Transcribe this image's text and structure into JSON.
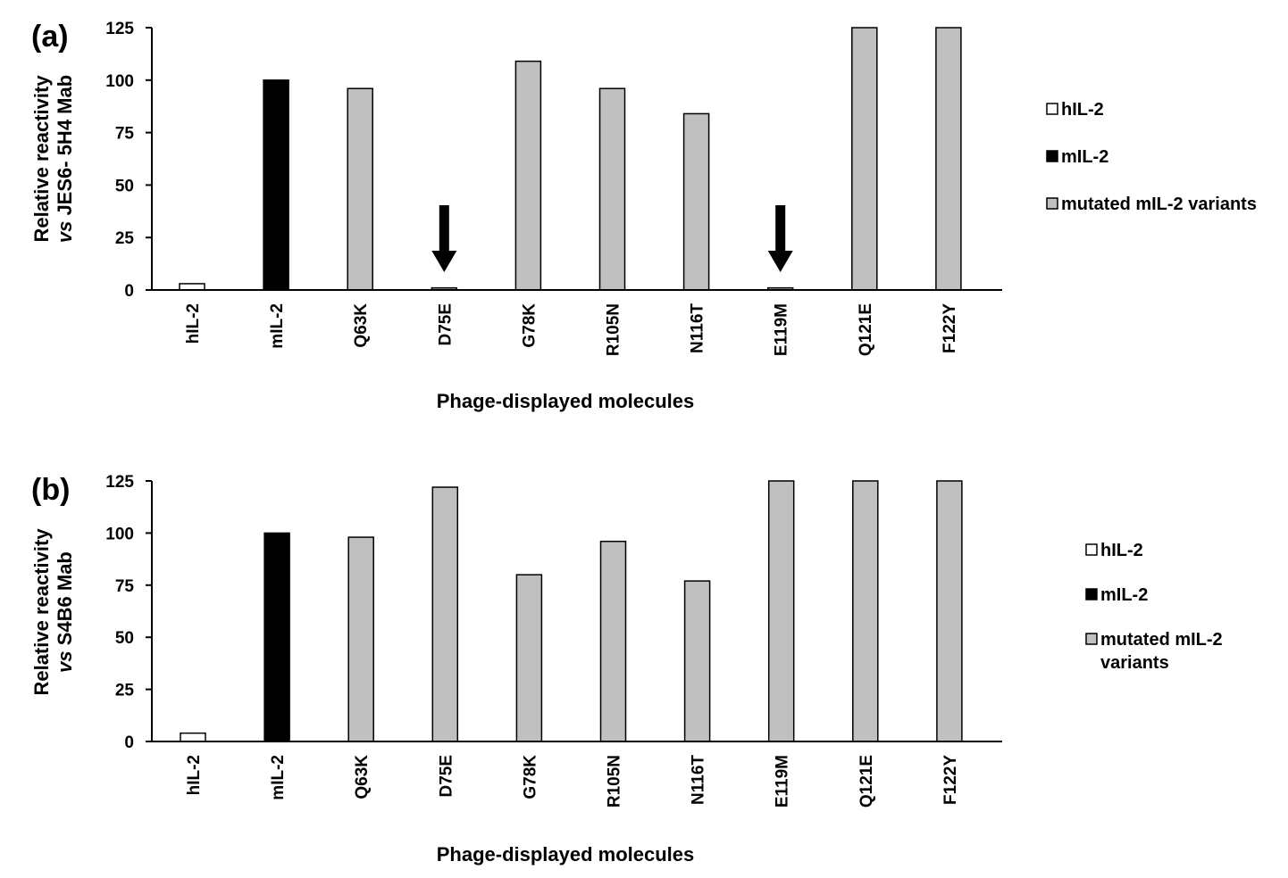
{
  "chart_data": [
    {
      "type": "bar",
      "panel_label": "(a)",
      "categories": [
        "hIL-2",
        "mIL-2",
        "Q63K",
        "D75E",
        "G78K",
        "R105N",
        "N116T",
        "E119M",
        "Q121E",
        "F122Y"
      ],
      "values": [
        3,
        100,
        96,
        1,
        109,
        96,
        84,
        1,
        125,
        125
      ],
      "bar_colors": [
        "#ffffff",
        "#000000",
        "#c0c0c0",
        "#c0c0c0",
        "#c0c0c0",
        "#c0c0c0",
        "#c0c0c0",
        "#c0c0c0",
        "#c0c0c0",
        "#c0c0c0"
      ],
      "ylabel_line1": "Relative reactivity",
      "ylabel_line2_italic": "vs",
      "ylabel_line2_rest": " JES6- 5H4  Mab",
      "xlabel": "Phage-displayed molecules",
      "ylim": [
        0,
        125
      ],
      "yticks": [
        "0",
        "25",
        "50",
        "75",
        "100",
        "125"
      ],
      "arrows_at": [
        "D75E",
        "E119M"
      ],
      "legend_position": "right",
      "legend": [
        {
          "label": "hIL-2",
          "color": "#ffffff"
        },
        {
          "label": "mIL-2",
          "color": "#000000"
        },
        {
          "label": "mutated mIL-2 variants",
          "color": "#c0c0c0"
        }
      ]
    },
    {
      "type": "bar",
      "panel_label": "(b)",
      "categories": [
        "hIL-2",
        "mIL-2",
        "Q63K",
        "D75E",
        "G78K",
        "R105N",
        "N116T",
        "E119M",
        "Q121E",
        "F122Y"
      ],
      "values": [
        4,
        100,
        98,
        122,
        80,
        96,
        77,
        125,
        125,
        125
      ],
      "bar_colors": [
        "#ffffff",
        "#000000",
        "#c0c0c0",
        "#c0c0c0",
        "#c0c0c0",
        "#c0c0c0",
        "#c0c0c0",
        "#c0c0c0",
        "#c0c0c0",
        "#c0c0c0"
      ],
      "ylabel_line1": "Relative reactivity",
      "ylabel_line2_italic": "vs",
      "ylabel_line2_rest": " S4B6 Mab",
      "xlabel": "Phage-displayed molecules",
      "ylim": [
        0,
        125
      ],
      "yticks": [
        "0",
        "25",
        "50",
        "75",
        "100",
        "125"
      ],
      "arrows_at": [],
      "legend_position": "right",
      "legend": [
        {
          "label": "hIL-2",
          "color": "#ffffff"
        },
        {
          "label": "mIL-2",
          "color": "#000000"
        },
        {
          "label": "mutated mIL-2\nvariants",
          "color": "#c0c0c0"
        }
      ]
    }
  ]
}
